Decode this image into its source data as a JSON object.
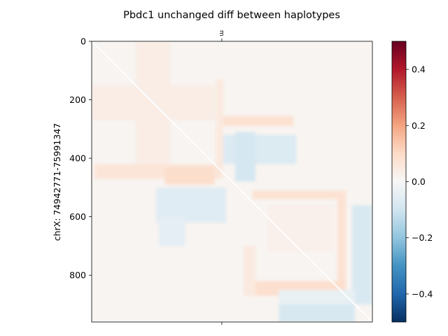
{
  "chart_data": {
    "type": "heatmap",
    "title": "Pbdc1 unchanged diff between haplotypes",
    "xlabel": "",
    "ylabel": "chrX: 74942771-75991347",
    "top_tick_label": "m",
    "y_ticks": [
      0,
      200,
      400,
      600,
      800
    ],
    "y_tick_labels": [
      "0",
      "200",
      "400",
      "600",
      "800"
    ],
    "ylim": [
      0,
      960
    ],
    "xlim": [
      0,
      960
    ],
    "x_tick_positions": [
      445
    ],
    "colorbar": {
      "colormap": "RdBu_r",
      "vmin": -0.5,
      "vmax": 0.5,
      "ticks": [
        0.4,
        0.2,
        0.0,
        -0.2,
        -0.4
      ],
      "tick_labels": [
        "0.4",
        "0.2",
        "0.0",
        "−0.2",
        "−0.4"
      ]
    },
    "features": [
      {
        "kind": "diagonal",
        "value": -0.01
      },
      {
        "kind": "rect",
        "x0": 0,
        "x1": 960,
        "y0": 0,
        "y1": 960,
        "value": 0.012
      },
      {
        "kind": "rect",
        "x0": 150,
        "x1": 270,
        "y0": 0,
        "y1": 420,
        "value": 0.035
      },
      {
        "kind": "rect",
        "x0": 0,
        "x1": 420,
        "y0": 150,
        "y1": 270,
        "value": 0.035
      },
      {
        "kind": "rect",
        "x0": 425,
        "x1": 450,
        "y0": 130,
        "y1": 470,
        "value": 0.05
      },
      {
        "kind": "rect",
        "x0": 450,
        "x1": 690,
        "y0": 255,
        "y1": 290,
        "value": 0.08
      },
      {
        "kind": "rect",
        "x0": 10,
        "x1": 440,
        "y0": 420,
        "y1": 470,
        "value": 0.065
      },
      {
        "kind": "rect",
        "x0": 250,
        "x1": 420,
        "y0": 430,
        "y1": 490,
        "value": 0.09
      },
      {
        "kind": "rect",
        "x0": 450,
        "x1": 700,
        "y0": 320,
        "y1": 420,
        "value": -0.07
      },
      {
        "kind": "rect",
        "x0": 490,
        "x1": 560,
        "y0": 310,
        "y1": 480,
        "value": -0.09
      },
      {
        "kind": "rect",
        "x0": 220,
        "x1": 460,
        "y0": 500,
        "y1": 620,
        "value": -0.06
      },
      {
        "kind": "rect",
        "x0": 230,
        "x1": 320,
        "y0": 600,
        "y1": 700,
        "value": -0.05
      },
      {
        "kind": "rect",
        "x0": 550,
        "x1": 870,
        "y0": 510,
        "y1": 540,
        "value": 0.075
      },
      {
        "kind": "rect",
        "x0": 840,
        "x1": 870,
        "y0": 510,
        "y1": 870,
        "value": 0.075
      },
      {
        "kind": "rect",
        "x0": 520,
        "x1": 870,
        "y0": 820,
        "y1": 870,
        "value": 0.085
      },
      {
        "kind": "rect",
        "x0": 520,
        "x1": 560,
        "y0": 700,
        "y1": 870,
        "value": 0.05
      },
      {
        "kind": "rect",
        "x0": 600,
        "x1": 830,
        "y0": 560,
        "y1": 720,
        "value": 0.025
      },
      {
        "kind": "rect",
        "x0": 890,
        "x1": 960,
        "y0": 560,
        "y1": 900,
        "value": -0.08
      },
      {
        "kind": "rect",
        "x0": 640,
        "x1": 900,
        "y0": 900,
        "y1": 960,
        "value": -0.085
      },
      {
        "kind": "rect",
        "x0": 640,
        "x1": 900,
        "y0": 850,
        "y1": 900,
        "value": -0.04
      }
    ]
  }
}
